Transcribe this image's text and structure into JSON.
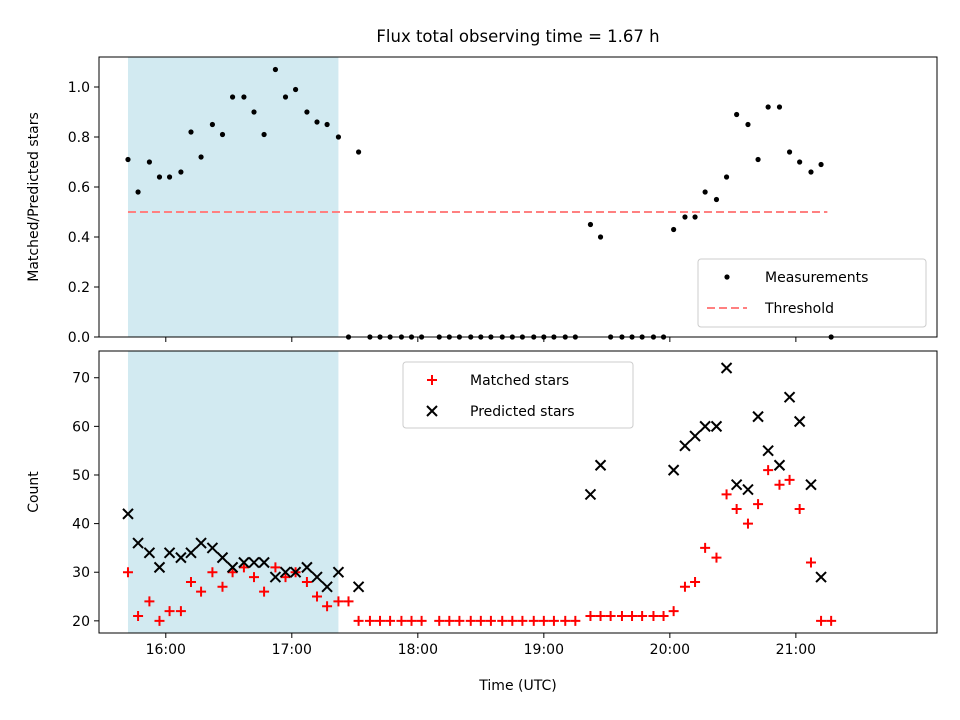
{
  "title": "Flux total observing time = 1.67 h",
  "colors": {
    "measurement": "#000000",
    "threshold": "#ff8080",
    "matched": "#ff0000",
    "predicted": "#000000",
    "shade": "#add8e6"
  },
  "chart_data": [
    {
      "type": "scatter",
      "ylabel": "Matched/Predicted stars",
      "xlim": [
        15.47,
        22.12
      ],
      "ylim": [
        0,
        1.12
      ],
      "yticks": [
        {
          "v": 0.0,
          "label": "0.0"
        },
        {
          "v": 0.2,
          "label": "0.2"
        },
        {
          "v": 0.4,
          "label": "0.4"
        },
        {
          "v": 0.6,
          "label": "0.6"
        },
        {
          "v": 0.8,
          "label": "0.8"
        },
        {
          "v": 1.0,
          "label": "1.0"
        }
      ],
      "shaded_interval": [
        15.7,
        17.37
      ],
      "threshold": {
        "name": "Threshold",
        "y": 0.5,
        "x_range": [
          15.7,
          21.25
        ]
      },
      "legend": {
        "position": "lower right",
        "entries": [
          "Measurements",
          "Threshold"
        ]
      },
      "series": [
        {
          "name": "Measurements",
          "points": [
            [
              15.7,
              0.71
            ],
            [
              15.78,
              0.58
            ],
            [
              15.87,
              0.7
            ],
            [
              15.95,
              0.64
            ],
            [
              16.03,
              0.64
            ],
            [
              16.12,
              0.66
            ],
            [
              16.2,
              0.82
            ],
            [
              16.28,
              0.72
            ],
            [
              16.37,
              0.85
            ],
            [
              16.45,
              0.81
            ],
            [
              16.53,
              0.96
            ],
            [
              16.62,
              0.96
            ],
            [
              16.7,
              0.9
            ],
            [
              16.78,
              0.81
            ],
            [
              16.87,
              1.07
            ],
            [
              16.95,
              0.96
            ],
            [
              17.03,
              0.99
            ],
            [
              17.12,
              0.9
            ],
            [
              17.2,
              0.86
            ],
            [
              17.28,
              0.85
            ],
            [
              17.37,
              0.8
            ],
            [
              17.45,
              0.0
            ],
            [
              17.53,
              0.74
            ],
            [
              17.62,
              0.0
            ],
            [
              17.7,
              0.0
            ],
            [
              17.78,
              0.0
            ],
            [
              17.87,
              0.0
            ],
            [
              17.95,
              0.0
            ],
            [
              18.03,
              0.0
            ],
            [
              18.17,
              0.0
            ],
            [
              18.25,
              0.0
            ],
            [
              18.33,
              0.0
            ],
            [
              18.42,
              0.0
            ],
            [
              18.5,
              0.0
            ],
            [
              18.58,
              0.0
            ],
            [
              18.67,
              0.0
            ],
            [
              18.75,
              0.0
            ],
            [
              18.83,
              0.0
            ],
            [
              18.92,
              0.0
            ],
            [
              19.0,
              0.0
            ],
            [
              19.08,
              0.0
            ],
            [
              19.17,
              0.0
            ],
            [
              19.25,
              0.0
            ],
            [
              19.37,
              0.45
            ],
            [
              19.45,
              0.4
            ],
            [
              19.53,
              0.0
            ],
            [
              19.62,
              0.0
            ],
            [
              19.7,
              0.0
            ],
            [
              19.78,
              0.0
            ],
            [
              19.87,
              0.0
            ],
            [
              19.95,
              0.0
            ],
            [
              20.03,
              0.43
            ],
            [
              20.12,
              0.48
            ],
            [
              20.2,
              0.48
            ],
            [
              20.28,
              0.58
            ],
            [
              20.37,
              0.55
            ],
            [
              20.45,
              0.64
            ],
            [
              20.53,
              0.89
            ],
            [
              20.62,
              0.85
            ],
            [
              20.7,
              0.71
            ],
            [
              20.78,
              0.92
            ],
            [
              20.87,
              0.92
            ],
            [
              20.95,
              0.74
            ],
            [
              21.03,
              0.7
            ],
            [
              21.12,
              0.66
            ],
            [
              21.2,
              0.69
            ],
            [
              21.28,
              0.0
            ]
          ]
        }
      ]
    },
    {
      "type": "scatter",
      "ylabel": "Count",
      "xlabel": "Time (UTC)",
      "xlim": [
        15.47,
        22.12
      ],
      "ylim": [
        17.5,
        75.5
      ],
      "yticks": [
        {
          "v": 20,
          "label": "20"
        },
        {
          "v": 30,
          "label": "30"
        },
        {
          "v": 40,
          "label": "40"
        },
        {
          "v": 50,
          "label": "50"
        },
        {
          "v": 60,
          "label": "60"
        },
        {
          "v": 70,
          "label": "70"
        }
      ],
      "xticks": [
        {
          "v": 16,
          "label": "16:00"
        },
        {
          "v": 17,
          "label": "17:00"
        },
        {
          "v": 18,
          "label": "18:00"
        },
        {
          "v": 19,
          "label": "19:00"
        },
        {
          "v": 20,
          "label": "20:00"
        },
        {
          "v": 21,
          "label": "21:00"
        }
      ],
      "shaded_interval": [
        15.7,
        17.37
      ],
      "legend": {
        "position": "upper center",
        "entries": [
          "Matched stars",
          "Predicted stars"
        ]
      },
      "series": [
        {
          "name": "Matched stars",
          "marker": "plus",
          "points": [
            [
              15.7,
              30
            ],
            [
              15.78,
              21
            ],
            [
              15.87,
              24
            ],
            [
              15.95,
              20
            ],
            [
              16.03,
              22
            ],
            [
              16.12,
              22
            ],
            [
              16.2,
              28
            ],
            [
              16.28,
              26
            ],
            [
              16.37,
              30
            ],
            [
              16.45,
              27
            ],
            [
              16.53,
              30
            ],
            [
              16.62,
              31
            ],
            [
              16.7,
              29
            ],
            [
              16.78,
              26
            ],
            [
              16.87,
              31
            ],
            [
              16.95,
              29
            ],
            [
              17.03,
              30
            ],
            [
              17.12,
              28
            ],
            [
              17.2,
              25
            ],
            [
              17.28,
              23
            ],
            [
              17.37,
              24
            ],
            [
              17.45,
              24
            ],
            [
              17.53,
              20
            ],
            [
              17.62,
              20
            ],
            [
              17.7,
              20
            ],
            [
              17.78,
              20
            ],
            [
              17.87,
              20
            ],
            [
              17.95,
              20
            ],
            [
              18.03,
              20
            ],
            [
              18.17,
              20
            ],
            [
              18.25,
              20
            ],
            [
              18.33,
              20
            ],
            [
              18.42,
              20
            ],
            [
              18.5,
              20
            ],
            [
              18.58,
              20
            ],
            [
              18.67,
              20
            ],
            [
              18.75,
              20
            ],
            [
              18.83,
              20
            ],
            [
              18.92,
              20
            ],
            [
              19.0,
              20
            ],
            [
              19.08,
              20
            ],
            [
              19.17,
              20
            ],
            [
              19.25,
              20
            ],
            [
              19.37,
              21
            ],
            [
              19.45,
              21
            ],
            [
              19.53,
              21
            ],
            [
              19.62,
              21
            ],
            [
              19.7,
              21
            ],
            [
              19.78,
              21
            ],
            [
              19.87,
              21
            ],
            [
              19.95,
              21
            ],
            [
              20.03,
              22
            ],
            [
              20.12,
              27
            ],
            [
              20.2,
              28
            ],
            [
              20.28,
              35
            ],
            [
              20.37,
              33
            ],
            [
              20.45,
              46
            ],
            [
              20.53,
              43
            ],
            [
              20.62,
              40
            ],
            [
              20.7,
              44
            ],
            [
              20.78,
              51
            ],
            [
              20.87,
              48
            ],
            [
              20.95,
              49
            ],
            [
              21.03,
              43
            ],
            [
              21.12,
              32
            ],
            [
              21.2,
              20
            ],
            [
              21.28,
              20
            ]
          ]
        },
        {
          "name": "Predicted stars",
          "marker": "x",
          "points": [
            [
              15.7,
              42
            ],
            [
              15.78,
              36
            ],
            [
              15.87,
              34
            ],
            [
              15.95,
              31
            ],
            [
              16.03,
              34
            ],
            [
              16.12,
              33
            ],
            [
              16.2,
              34
            ],
            [
              16.28,
              36
            ],
            [
              16.37,
              35
            ],
            [
              16.45,
              33
            ],
            [
              16.53,
              31
            ],
            [
              16.62,
              32
            ],
            [
              16.7,
              32
            ],
            [
              16.78,
              32
            ],
            [
              16.87,
              29
            ],
            [
              16.95,
              30
            ],
            [
              17.03,
              30
            ],
            [
              17.12,
              31
            ],
            [
              17.2,
              29
            ],
            [
              17.28,
              27
            ],
            [
              17.37,
              30
            ],
            [
              17.53,
              27
            ],
            [
              19.37,
              46
            ],
            [
              19.45,
              52
            ],
            [
              20.03,
              51
            ],
            [
              20.12,
              56
            ],
            [
              20.2,
              58
            ],
            [
              20.28,
              60
            ],
            [
              20.37,
              60
            ],
            [
              20.45,
              72
            ],
            [
              20.53,
              48
            ],
            [
              20.62,
              47
            ],
            [
              20.7,
              62
            ],
            [
              20.78,
              55
            ],
            [
              20.87,
              52
            ],
            [
              20.95,
              66
            ],
            [
              21.03,
              61
            ],
            [
              21.12,
              48
            ],
            [
              21.2,
              29
            ]
          ]
        }
      ]
    }
  ]
}
